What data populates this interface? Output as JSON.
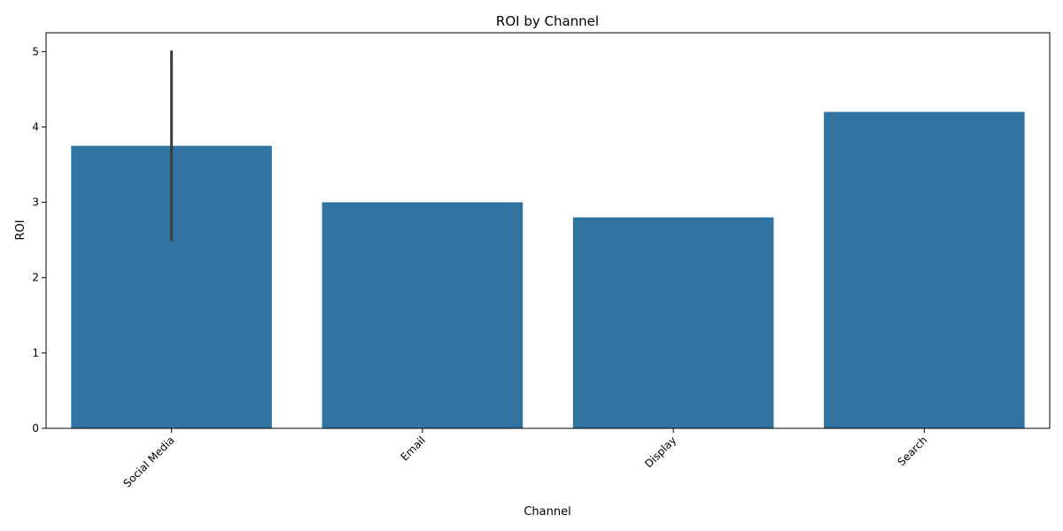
{
  "chart_data": {
    "type": "bar",
    "title": "ROI by Channel",
    "xlabel": "Channel",
    "ylabel": "ROI",
    "categories": [
      "Social Media",
      "Email",
      "Display",
      "Search"
    ],
    "values": [
      3.75,
      3.0,
      2.8,
      4.2
    ],
    "error_bars": [
      {
        "category": "Social Media",
        "low": 2.5,
        "high": 5.0
      }
    ],
    "ylim": [
      0,
      5.25
    ],
    "yticks": [
      0,
      1,
      2,
      3,
      4,
      5
    ],
    "bar_color": "#3274a1",
    "error_color": "#3d3d3d",
    "grid": false,
    "xtick_rotation": -45
  }
}
